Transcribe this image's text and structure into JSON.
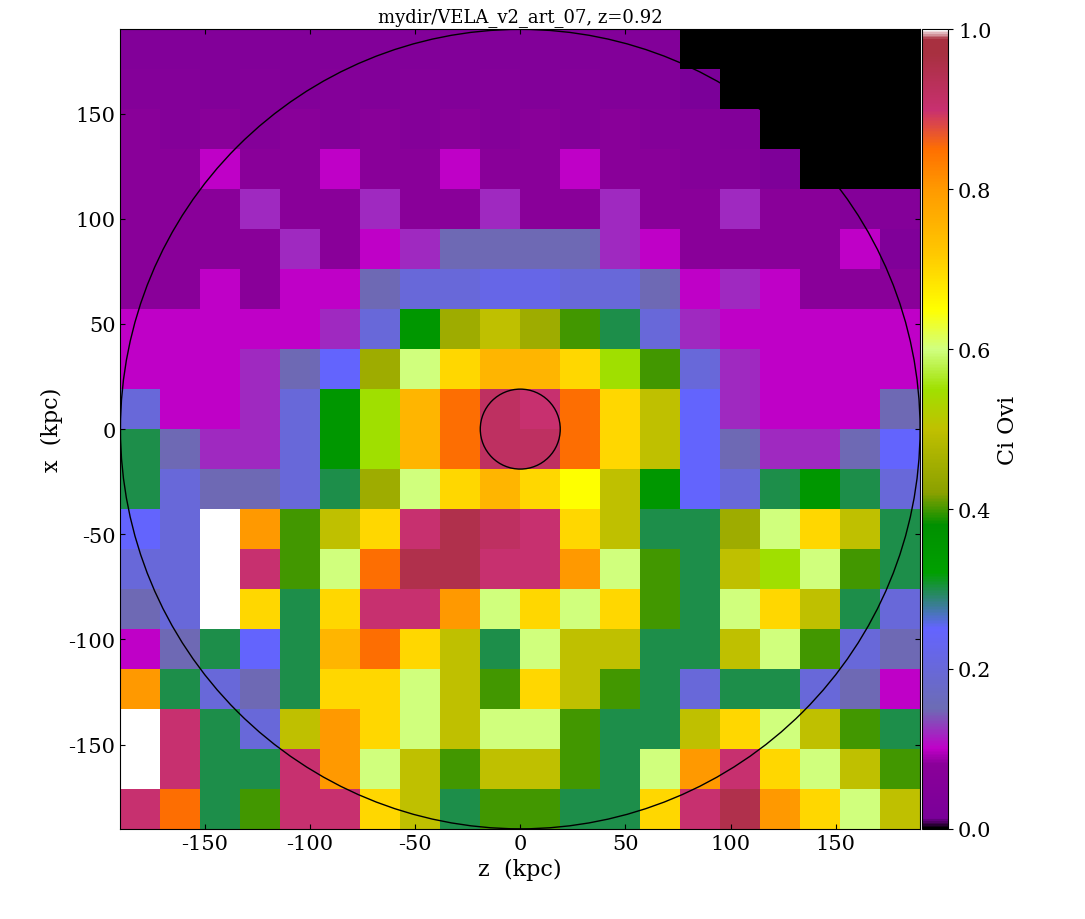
{
  "chart_data": {
    "type": "heatmap",
    "title": "mydir/VELA_v2_art_07, z=0.92",
    "xlabel": "z  (kpc)",
    "ylabel": "x  (kpc)",
    "colorbar_label": "Ci Ovi",
    "xlim": [
      -190,
      190
    ],
    "ylim": [
      -190,
      190
    ],
    "xticks": [
      -150,
      -100,
      -50,
      0,
      50,
      100,
      150
    ],
    "yticks": [
      -150,
      -100,
      -50,
      0,
      50,
      100,
      150
    ],
    "colorbar_range": [
      0.0,
      1.0
    ],
    "colorbar_ticks": [
      {
        "value": 0.0,
        "label": "0.0"
      },
      {
        "value": 0.2,
        "label": "0.2"
      },
      {
        "value": 0.4,
        "label": "0.4"
      },
      {
        "value": 0.6,
        "label": "0.6"
      },
      {
        "value": 0.8,
        "label": "0.8"
      },
      {
        "value": 1.0,
        "label": "1.0"
      }
    ],
    "circle_radii": [
      190,
      19
    ],
    "cells": [
      [
        0.05,
        0.05,
        0.05,
        0.05,
        0.05,
        0.05,
        0.05,
        0.05,
        0.05,
        0.05,
        0.05,
        0.05,
        0.05,
        0.05,
        0.0,
        0.0,
        0.0,
        0.0,
        0.0,
        0.0
      ],
      [
        0.06,
        0.06,
        0.05,
        0.06,
        0.05,
        0.06,
        0.05,
        0.06,
        0.05,
        0.06,
        0.05,
        0.06,
        0.05,
        0.05,
        0.02,
        0.0,
        0.0,
        0.0,
        0.0,
        0.0
      ],
      [
        0.08,
        0.06,
        0.08,
        0.06,
        0.08,
        0.06,
        0.08,
        0.06,
        0.08,
        0.06,
        0.08,
        0.06,
        0.08,
        0.06,
        0.06,
        0.05,
        0.0,
        0.0,
        0.0,
        0.0
      ],
      [
        0.08,
        0.08,
        0.1,
        0.08,
        0.08,
        0.1,
        0.08,
        0.08,
        0.1,
        0.08,
        0.08,
        0.1,
        0.08,
        0.08,
        0.06,
        0.06,
        0.03,
        0.0,
        0.0,
        0.0
      ],
      [
        0.08,
        0.08,
        0.08,
        0.12,
        0.08,
        0.08,
        0.12,
        0.08,
        0.08,
        0.12,
        0.08,
        0.08,
        0.12,
        0.08,
        0.08,
        0.12,
        0.08,
        0.08,
        0.06,
        0.06
      ],
      [
        0.08,
        0.08,
        0.08,
        0.08,
        0.12,
        0.08,
        0.1,
        0.12,
        0.15,
        0.15,
        0.15,
        0.15,
        0.12,
        0.1,
        0.08,
        0.08,
        0.08,
        0.08,
        0.1,
        0.04
      ],
      [
        0.08,
        0.08,
        0.1,
        0.08,
        0.1,
        0.1,
        0.15,
        0.2,
        0.2,
        0.22,
        0.22,
        0.2,
        0.2,
        0.15,
        0.1,
        0.12,
        0.1,
        0.08,
        0.08,
        0.08
      ],
      [
        0.1,
        0.1,
        0.1,
        0.1,
        0.1,
        0.12,
        0.2,
        0.35,
        0.45,
        0.5,
        0.45,
        0.4,
        0.3,
        0.2,
        0.12,
        0.1,
        0.1,
        0.1,
        0.1,
        0.1
      ],
      [
        0.1,
        0.1,
        0.1,
        0.12,
        0.15,
        0.25,
        0.45,
        0.6,
        0.7,
        0.75,
        0.75,
        0.7,
        0.55,
        0.4,
        0.2,
        0.12,
        0.1,
        0.1,
        0.1,
        0.1
      ],
      [
        0.2,
        0.1,
        0.1,
        0.12,
        0.2,
        0.35,
        0.55,
        0.75,
        0.85,
        0.92,
        0.9,
        0.85,
        0.7,
        0.5,
        0.25,
        0.12,
        0.1,
        0.1,
        0.1,
        0.15
      ],
      [
        0.3,
        0.15,
        0.12,
        0.12,
        0.2,
        0.35,
        0.55,
        0.75,
        0.85,
        0.92,
        0.92,
        0.85,
        0.7,
        0.5,
        0.25,
        0.15,
        0.12,
        0.12,
        0.15,
        0.25
      ],
      [
        0.3,
        0.2,
        0.15,
        0.15,
        0.2,
        0.3,
        0.45,
        0.6,
        0.7,
        0.75,
        0.7,
        0.65,
        0.5,
        0.35,
        0.25,
        0.2,
        0.3,
        0.35,
        0.3,
        0.2
      ],
      [
        0.25,
        0.2,
        1.0,
        0.8,
        0.4,
        0.5,
        0.7,
        0.9,
        0.95,
        0.92,
        0.9,
        0.7,
        0.5,
        0.3,
        0.3,
        0.45,
        0.6,
        0.7,
        0.5,
        0.3
      ],
      [
        0.2,
        0.2,
        1.0,
        0.9,
        0.4,
        0.6,
        0.85,
        0.95,
        0.95,
        0.9,
        0.9,
        0.8,
        0.6,
        0.4,
        0.3,
        0.5,
        0.55,
        0.6,
        0.4,
        0.3
      ],
      [
        0.15,
        0.2,
        1.0,
        0.7,
        0.3,
        0.7,
        0.9,
        0.9,
        0.8,
        0.6,
        0.7,
        0.6,
        0.7,
        0.4,
        0.3,
        0.6,
        0.7,
        0.5,
        0.3,
        0.2
      ],
      [
        0.1,
        0.15,
        0.3,
        0.25,
        0.3,
        0.75,
        0.85,
        0.7,
        0.5,
        0.3,
        0.6,
        0.5,
        0.5,
        0.3,
        0.3,
        0.5,
        0.6,
        0.4,
        0.2,
        0.15
      ],
      [
        0.8,
        0.3,
        0.2,
        0.15,
        0.3,
        0.7,
        0.7,
        0.6,
        0.5,
        0.4,
        0.7,
        0.5,
        0.4,
        0.3,
        0.2,
        0.3,
        0.3,
        0.2,
        0.15,
        0.1
      ],
      [
        1.0,
        0.9,
        0.3,
        0.2,
        0.5,
        0.8,
        0.7,
        0.6,
        0.5,
        0.6,
        0.6,
        0.4,
        0.3,
        0.3,
        0.5,
        0.7,
        0.6,
        0.5,
        0.4,
        0.3
      ],
      [
        1.0,
        0.9,
        0.3,
        0.3,
        0.9,
        0.8,
        0.6,
        0.5,
        0.4,
        0.5,
        0.5,
        0.4,
        0.3,
        0.6,
        0.8,
        0.9,
        0.7,
        0.6,
        0.5,
        0.4
      ],
      [
        0.9,
        0.85,
        0.3,
        0.4,
        0.9,
        0.9,
        0.7,
        0.5,
        0.3,
        0.4,
        0.4,
        0.3,
        0.3,
        0.7,
        0.9,
        0.95,
        0.8,
        0.7,
        0.6,
        0.5
      ]
    ]
  }
}
